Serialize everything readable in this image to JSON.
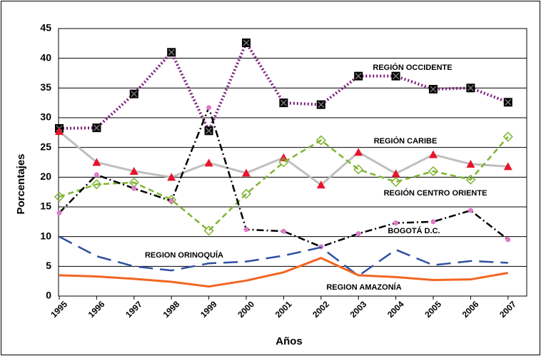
{
  "chart_data": {
    "type": "line",
    "x_label": "Años",
    "y_label": "Porcentajes",
    "categories": [
      "1995",
      "1996",
      "1997",
      "1998",
      "1999",
      "2000",
      "2001",
      "2002",
      "2003",
      "2004",
      "2005",
      "2006",
      "2007"
    ],
    "ylim": [
      0,
      45
    ],
    "yticks": [
      0,
      5,
      10,
      15,
      20,
      25,
      30,
      35,
      40,
      45
    ],
    "grid": true,
    "series": [
      {
        "name": "REGIÓN OCCIDENTE",
        "color": "#7b1c7b",
        "dash": "dotted",
        "marker": "square",
        "values": [
          28.2,
          28.3,
          34,
          41,
          27.8,
          42.6,
          32.5,
          32.2,
          37,
          37,
          34.8,
          35,
          32.6
        ]
      },
      {
        "name": "REGIÓN CARIBE",
        "color": "#bfbfbf",
        "dash": "solid",
        "marker": "triangle",
        "values": [
          27.7,
          22.5,
          21,
          20,
          22.4,
          20.7,
          23.3,
          18.7,
          24.2,
          20.6,
          23.8,
          22.2,
          21.8
        ]
      },
      {
        "name": "REGIÓN CENTRO ORIENTE",
        "color": "#7fb431",
        "dash": "dashed",
        "marker": "diamond",
        "values": [
          16.7,
          18.8,
          19.1,
          16.2,
          11,
          17.2,
          22.5,
          26.2,
          21.3,
          19.2,
          21,
          19.6,
          26.8
        ]
      },
      {
        "name": "BOGOTÁ D.C.",
        "color": "#000000",
        "dash": "dashdot",
        "marker": "circle",
        "values": [
          14,
          20.4,
          18.1,
          16,
          31.7,
          11.2,
          10.9,
          8.3,
          10.5,
          12.3,
          12.5,
          14.4,
          9.5
        ]
      },
      {
        "name": "REGION ORINOQUÍA",
        "color": "#2f4fa0",
        "dash": "longdash",
        "marker": "none",
        "values": [
          10,
          6.7,
          5,
          4.3,
          5.5,
          5.8,
          6.8,
          8.2,
          3.4,
          7.8,
          5.2,
          5.9,
          5.6
        ]
      },
      {
        "name": "REGION AMAZONÍA",
        "color": "#f26522",
        "dash": "solid",
        "marker": "none",
        "values": [
          3.5,
          3.3,
          2.9,
          2.4,
          1.6,
          2.6,
          4,
          6.4,
          3.5,
          3.2,
          2.7,
          2.8,
          3.9
        ]
      }
    ]
  }
}
